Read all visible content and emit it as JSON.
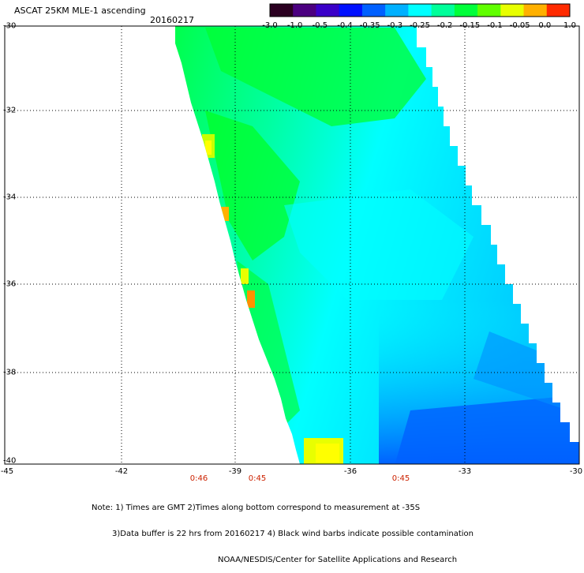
{
  "title": "ASCAT 25KM MLE-1 ascending",
  "date": "20160217",
  "colorbar": {
    "labels": [
      "-3.0",
      "-1.0",
      "-0.5",
      "-0.4",
      "-0.35",
      "-0.3",
      "-0.25",
      "-0.2",
      "-0.15",
      "-0.1",
      "-0.05",
      "0.0",
      "1.0"
    ],
    "colors": [
      "#2a0020",
      "#4b0080",
      "#3a00c8",
      "#0010ff",
      "#0060ff",
      "#00b0ff",
      "#00ffff",
      "#00ff9a",
      "#00ff3a",
      "#60ff00",
      "#e8ff00",
      "#ffb000",
      "#ff2a00"
    ]
  },
  "lat_labels": [
    "-30",
    "-32",
    "-34",
    "-36",
    "-38",
    "-40"
  ],
  "lon_labels": [
    "-45",
    "-42",
    "-39",
    "-36",
    "-33",
    "-30"
  ],
  "time_labels": [
    "0:46",
    "0:45",
    "0:45"
  ],
  "notes": [
    "Note: 1) Times are GMT 2)Times along bottom correspond to measurement at -35S",
    "3)Data buffer is 22 hrs from 20160217 4) Black wind barbs indicate possible contamination",
    "NOAA/NESDIS/Center for Satellite Applications and Research"
  ],
  "map": {
    "lat_range": [
      -40,
      -30
    ],
    "lon_range": [
      -45,
      -30
    ],
    "grid": "dotted",
    "variable": "MLE-1"
  }
}
